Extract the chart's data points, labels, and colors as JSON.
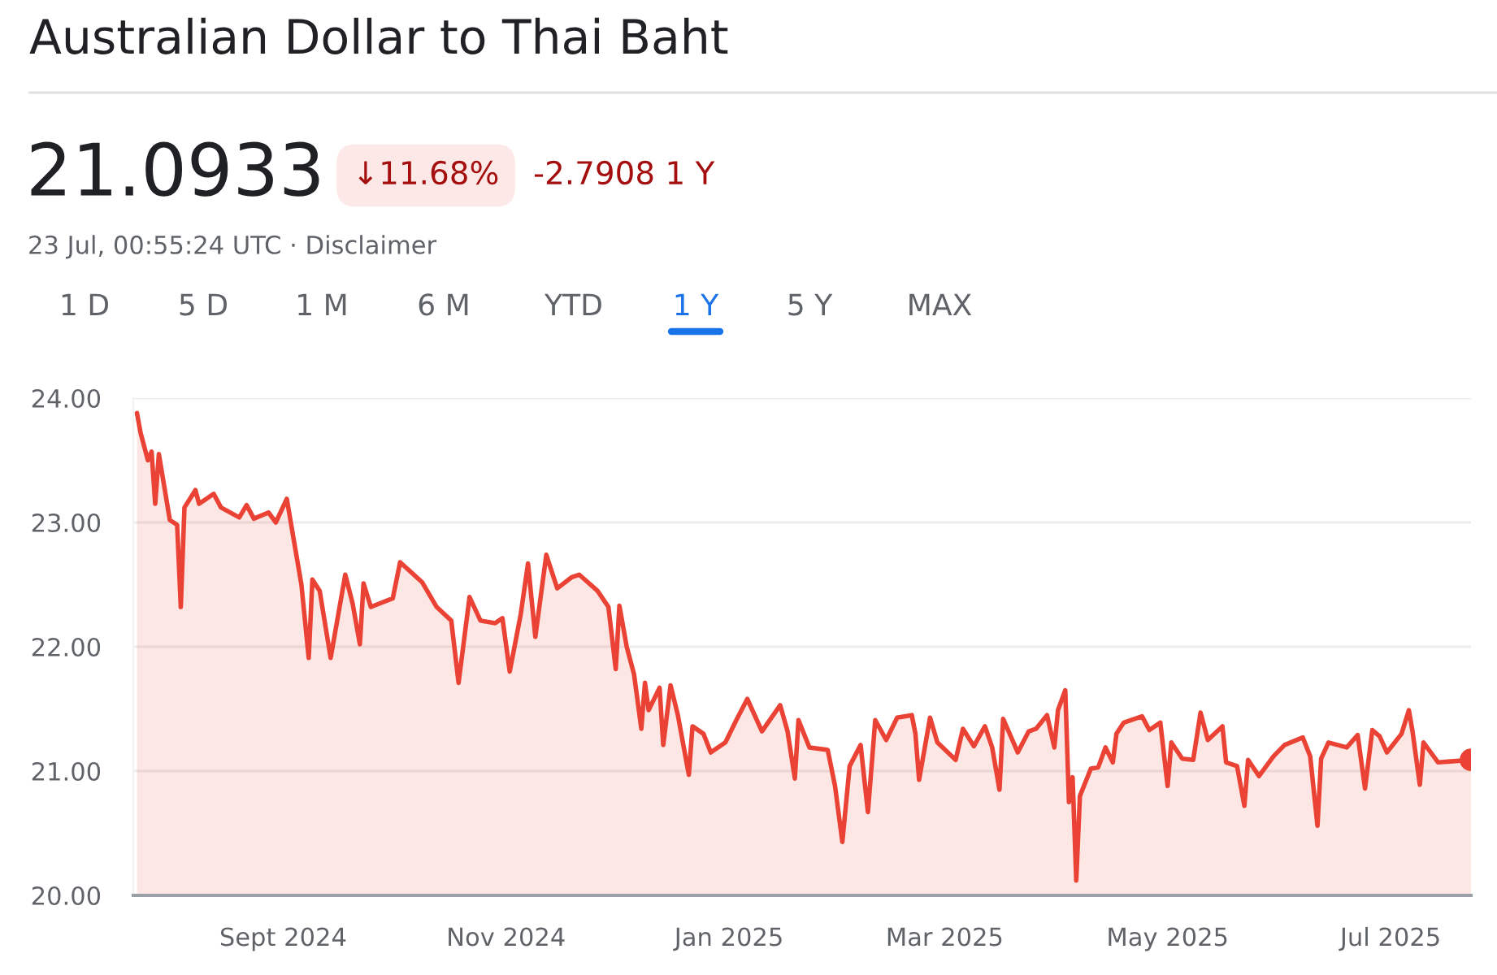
{
  "chart_data": {
    "type": "area",
    "title": "Australian Dollar to Thai Baht",
    "annotations": [
      "21.0933",
      "↓11.68%",
      "-2.7908 1 Y",
      "23 Jul, 00:55:24 UTC · Disclaimer",
      "1 D",
      "5 D",
      "1 M",
      "6 M",
      "YTD",
      "1 Y",
      "5 Y",
      "MAX"
    ],
    "series": [
      {
        "color": "#ea4335",
        "x": [
          "2024-07-23",
          "2024-07-24",
          "2024-07-26",
          "2024-07-27",
          "2024-07-28",
          "2024-07-29",
          "2024-08-01",
          "2024-08-03",
          "2024-08-04",
          "2024-08-05",
          "2024-08-08",
          "2024-08-09",
          "2024-08-13",
          "2024-08-15",
          "2024-08-20",
          "2024-08-22",
          "2024-08-24",
          "2024-08-28",
          "2024-08-30",
          "2024-09-02",
          "2024-09-06",
          "2024-09-08",
          "2024-09-09",
          "2024-09-11",
          "2024-09-14",
          "2024-09-18",
          "2024-09-20",
          "2024-09-22",
          "2024-09-23",
          "2024-09-25",
          "2024-10-01",
          "2024-10-03",
          "2024-10-09",
          "2024-10-13",
          "2024-10-17",
          "2024-10-19",
          "2024-10-22",
          "2024-10-25",
          "2024-10-29",
          "2024-10-31",
          "2024-11-02",
          "2024-11-05",
          "2024-11-07",
          "2024-11-09",
          "2024-11-12",
          "2024-11-15",
          "2024-11-19",
          "2024-11-21",
          "2024-11-26",
          "2024-11-29",
          "2024-12-01",
          "2024-12-02",
          "2024-12-04",
          "2024-12-06",
          "2024-12-08",
          "2024-12-09",
          "2024-12-10",
          "2024-12-13",
          "2024-12-14",
          "2024-12-16",
          "2024-12-18",
          "2024-12-21",
          "2024-12-22",
          "2024-12-25",
          "2024-12-27",
          "2024-12-31",
          "2025-01-03",
          "2025-01-06",
          "2025-01-10",
          "2025-01-15",
          "2025-01-17",
          "2025-01-19",
          "2025-01-20",
          "2025-01-23",
          "2025-01-28",
          "2025-01-30",
          "2025-02-01",
          "2025-02-03",
          "2025-02-06",
          "2025-02-08",
          "2025-02-10",
          "2025-02-13",
          "2025-02-16",
          "2025-02-20",
          "2025-02-21",
          "2025-02-22",
          "2025-02-25",
          "2025-02-27",
          "2025-03-04",
          "2025-03-06",
          "2025-03-09",
          "2025-03-12",
          "2025-03-14",
          "2025-03-16",
          "2025-03-17",
          "2025-03-21",
          "2025-03-24",
          "2025-03-26",
          "2025-03-29",
          "2025-03-31",
          "2025-04-01",
          "2025-04-03",
          "2025-04-04",
          "2025-04-05",
          "2025-04-06",
          "2025-04-07",
          "2025-04-10",
          "2025-04-12",
          "2025-04-14",
          "2025-04-16",
          "2025-04-17",
          "2025-04-19",
          "2025-04-24",
          "2025-04-26",
          "2025-04-29",
          "2025-05-01",
          "2025-05-02",
          "2025-05-05",
          "2025-05-08",
          "2025-05-10",
          "2025-05-12",
          "2025-05-16",
          "2025-05-17",
          "2025-05-20",
          "2025-05-22",
          "2025-05-23",
          "2025-05-26",
          "2025-05-30",
          "2025-06-02",
          "2025-06-07",
          "2025-06-09",
          "2025-06-11",
          "2025-06-12",
          "2025-06-14",
          "2025-06-19",
          "2025-06-22",
          "2025-06-24",
          "2025-06-26",
          "2025-06-28",
          "2025-06-30",
          "2025-07-04",
          "2025-07-06",
          "2025-07-07",
          "2025-07-09",
          "2025-07-10",
          "2025-07-14",
          "2025-07-23"
        ],
        "values": [
          23.88,
          23.72,
          23.5,
          23.57,
          23.15,
          23.55,
          23.02,
          22.98,
          22.32,
          23.12,
          23.26,
          23.15,
          23.23,
          23.12,
          23.04,
          23.14,
          23.03,
          23.08,
          23.0,
          23.19,
          22.5,
          21.91,
          22.54,
          22.45,
          21.91,
          22.58,
          22.35,
          22.02,
          22.51,
          22.32,
          22.39,
          22.68,
          22.52,
          22.32,
          22.21,
          21.71,
          22.4,
          22.21,
          22.19,
          22.23,
          21.8,
          22.26,
          22.67,
          22.08,
          22.74,
          22.47,
          22.56,
          22.58,
          22.45,
          22.32,
          21.82,
          22.33,
          22.0,
          21.78,
          21.34,
          21.71,
          21.49,
          21.67,
          21.21,
          21.69,
          21.45,
          20.97,
          21.36,
          21.3,
          21.15,
          21.23,
          21.41,
          21.58,
          21.32,
          21.53,
          21.32,
          20.94,
          21.41,
          21.19,
          21.17,
          20.88,
          20.43,
          21.04,
          21.21,
          20.67,
          21.41,
          21.25,
          21.43,
          21.45,
          21.3,
          20.93,
          21.43,
          21.23,
          21.09,
          21.34,
          21.2,
          21.36,
          21.19,
          20.85,
          21.42,
          21.15,
          21.32,
          21.34,
          21.45,
          21.19,
          21.49,
          21.65,
          20.75,
          20.95,
          20.12,
          20.8,
          21.02,
          21.03,
          21.19,
          21.07,
          21.3,
          21.39,
          21.44,
          21.33,
          21.39,
          20.88,
          21.23,
          21.1,
          21.09,
          21.47,
          21.25,
          21.36,
          21.07,
          21.04,
          20.72,
          21.09,
          20.96,
          21.12,
          21.21,
          21.27,
          21.12,
          20.56,
          21.1,
          21.23,
          21.19,
          21.29,
          20.86,
          21.33,
          21.28,
          21.15,
          21.3,
          21.49,
          21.32,
          20.89,
          21.23,
          21.07,
          21.09
        ]
      }
    ],
    "xlim": [
      "2024-07-22",
      "2025-07-23"
    ],
    "xticks": [
      {
        "value": "2024-09-01",
        "label": "Sept 2024"
      },
      {
        "value": "2024-11-01",
        "label": "Nov 2024"
      },
      {
        "value": "2025-01-01",
        "label": "Jan 2025"
      },
      {
        "value": "2025-03-01",
        "label": "Mar 2025"
      },
      {
        "value": "2025-05-01",
        "label": "May 2025"
      },
      {
        "value": "2025-07-01",
        "label": "Jul 2025"
      }
    ],
    "ylim": [
      20,
      24
    ],
    "yticks": [
      {
        "value": 20,
        "label": "20.00"
      },
      {
        "value": 21,
        "label": "21.00"
      },
      {
        "value": 22,
        "label": "22.00"
      },
      {
        "value": 23,
        "label": "23.00"
      },
      {
        "value": 24,
        "label": "24.00"
      }
    ],
    "grid": "y",
    "legend": false
  }
}
